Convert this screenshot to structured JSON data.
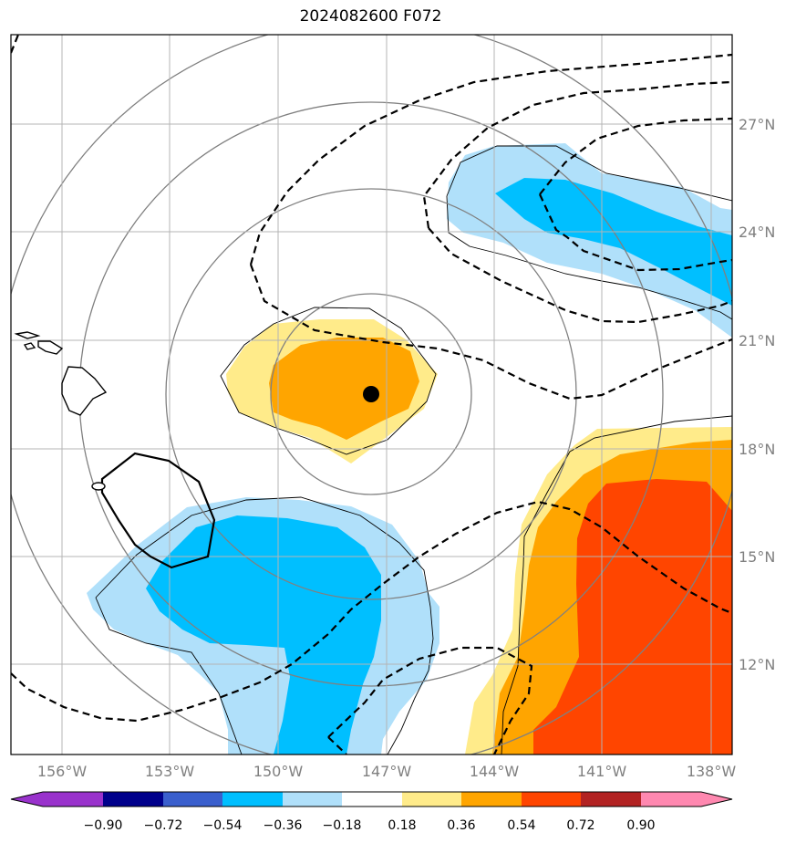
{
  "title": "2024082600 F072",
  "lon_labels": [
    "156°W",
    "153°W",
    "150°W",
    "147°W",
    "144°W",
    "141°W",
    "138°W"
  ],
  "lat_labels": [
    "27°N",
    "24°N",
    "21°N",
    "18°N",
    "15°N",
    "12°N"
  ],
  "colorbar": {
    "ticks": [
      "−0.90",
      "−0.72",
      "−0.54",
      "−0.36",
      "−0.18",
      "0.18",
      "0.36",
      "0.54",
      "0.72",
      "0.90"
    ],
    "colors": [
      "#9932cc",
      "#00008b",
      "#3a5fcd",
      "#00bfff",
      "#b0e0fa",
      "#ffffff",
      "#ffeb8a",
      "#ffa500",
      "#ff4500",
      "#b22222",
      "#ff88b0"
    ]
  },
  "shading_colors": {
    "neg_light": "#b0e0fa",
    "neg_mid": "#00bfff",
    "pos_light": "#ffeb8a",
    "pos_mid": "#ffa500",
    "pos_strong": "#ff4500"
  },
  "storm_marker": {
    "lon": -146.8,
    "lat": 19.5
  }
}
